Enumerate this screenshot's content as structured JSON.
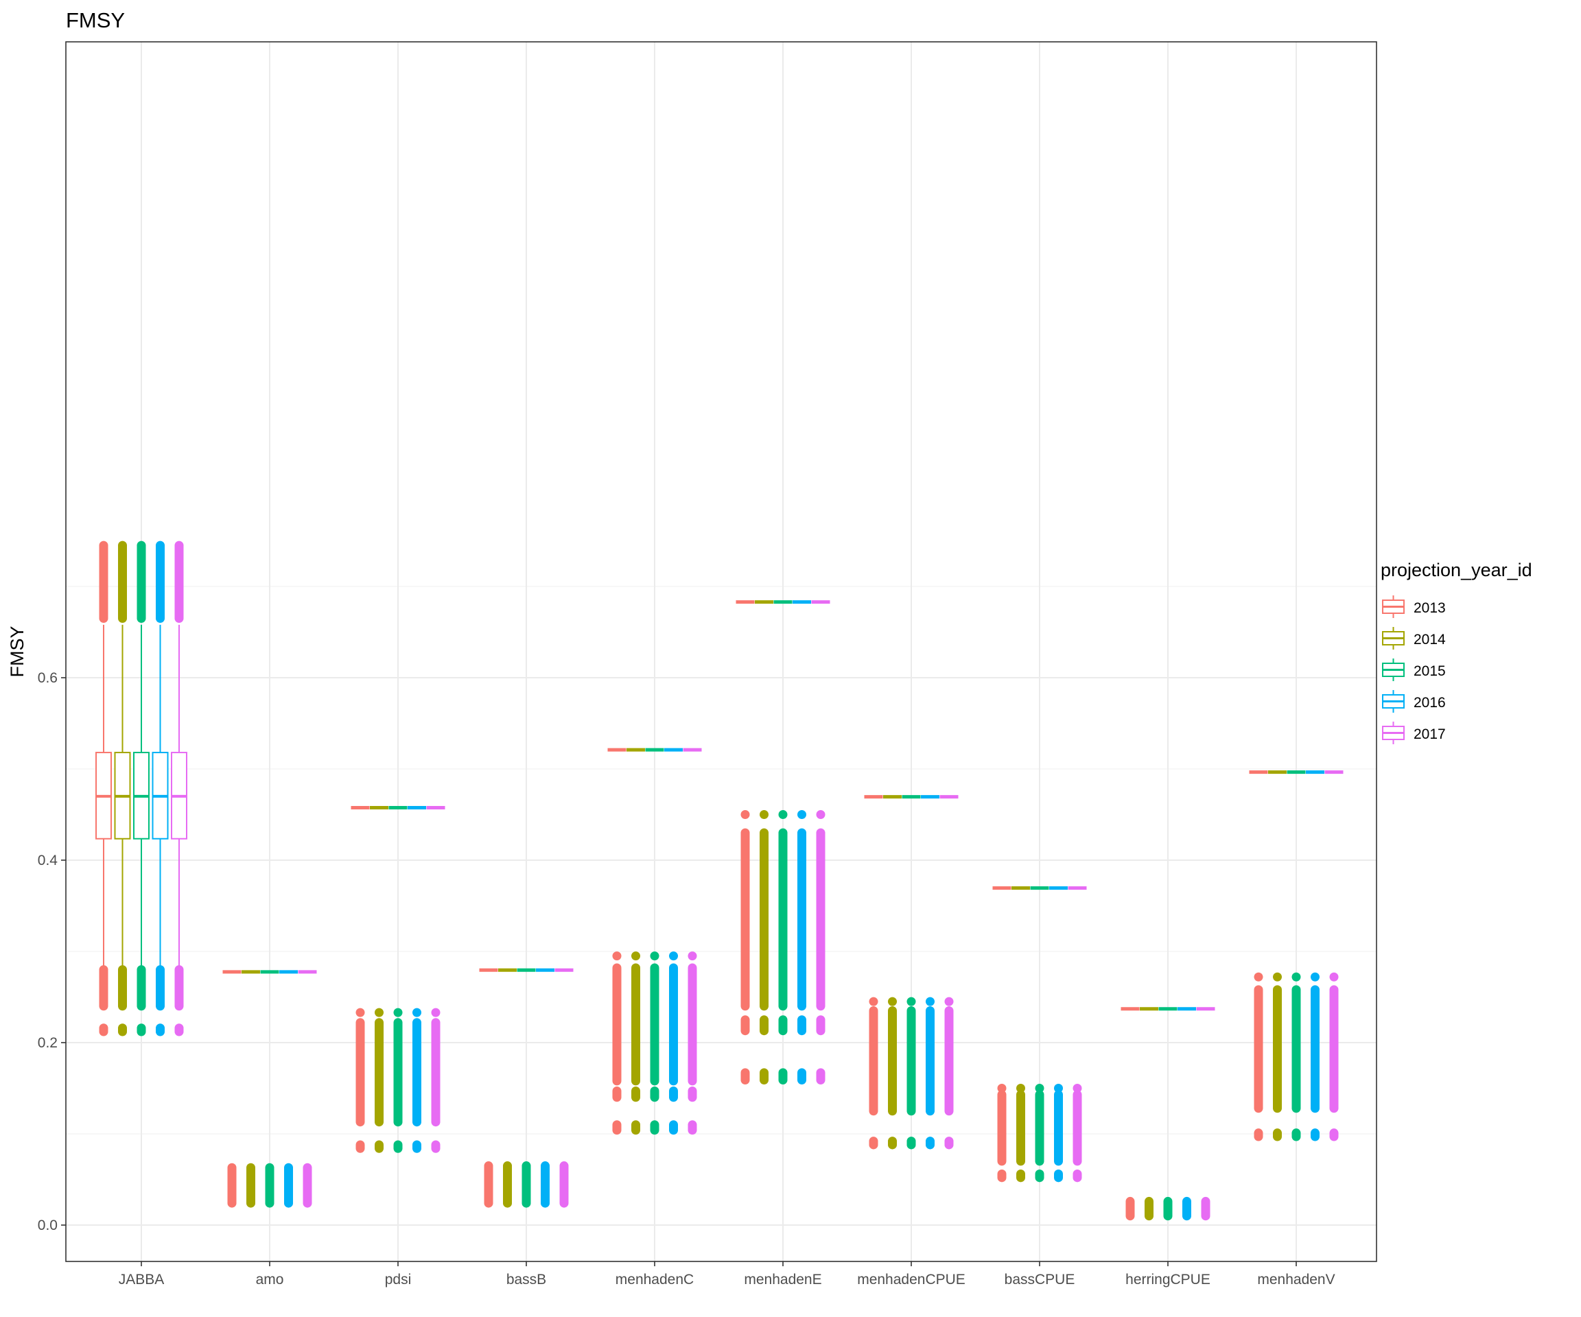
{
  "chart_data": {
    "type": "boxplot",
    "title": "FMSY",
    "xlabel": "",
    "ylabel": "FMSY",
    "ylim": [
      -0.02,
      0.78
    ],
    "yticks": [
      0.0,
      0.2,
      0.4,
      0.6
    ],
    "ytick_labels": [
      "0.0",
      "0.2",
      "0.4",
      "0.6"
    ],
    "grid": true,
    "legend": {
      "title": "projection_year_id",
      "placement": "right",
      "entries": [
        "2013",
        "2014",
        "2015",
        "2016",
        "2017"
      ]
    },
    "colors": [
      "#F8766D",
      "#A3A500",
      "#00BF7D",
      "#00B0F6",
      "#E76BF3"
    ],
    "categories": [
      "JABBA",
      "amo",
      "pdsi",
      "bassB",
      "menhadenC",
      "menhadenE",
      "menhadenCPUE",
      "bassCPUE",
      "herringCPUE",
      "menhadenV"
    ],
    "series": [
      {
        "category": "JABBA",
        "box": {
          "q1": 0.4235,
          "median": 0.47,
          "q3": 0.518,
          "whisker_low": 0.283,
          "whisker_high": 0.658
        },
        "outliers_high": {
          "from": 0.665,
          "to": 0.745
        },
        "outliers_low": [
          {
            "from": 0.24,
            "to": 0.28
          },
          {
            "from": 0.212,
            "to": 0.216
          }
        ]
      },
      {
        "category": "amo",
        "box": {
          "q1": 0.2775,
          "median": 0.2775,
          "q3": 0.2775,
          "whisker_low": 0.2775,
          "whisker_high": 0.2775
        },
        "outliers_low": [
          {
            "from": 0.024,
            "to": 0.063
          }
        ]
      },
      {
        "category": "pdsi",
        "box": {
          "q1": 0.4575,
          "median": 0.4575,
          "q3": 0.4575,
          "whisker_low": 0.4575,
          "whisker_high": 0.4575
        },
        "outliers_low": [
          {
            "from": 0.113,
            "to": 0.222
          },
          {
            "from": 0.084,
            "to": 0.088
          }
        ],
        "outliers_low_extra": [
          0.233
        ]
      },
      {
        "category": "bassB",
        "box": {
          "q1": 0.2795,
          "median": 0.2795,
          "q3": 0.2795,
          "whisker_low": 0.2795,
          "whisker_high": 0.2795
        },
        "outliers_low": [
          {
            "from": 0.024,
            "to": 0.065
          }
        ]
      },
      {
        "category": "menhadenC",
        "box": {
          "q1": 0.521,
          "median": 0.521,
          "q3": 0.521,
          "whisker_low": 0.521,
          "whisker_high": 0.521
        },
        "outliers_low": [
          {
            "from": 0.158,
            "to": 0.282
          },
          {
            "from": 0.14,
            "to": 0.147
          },
          {
            "from": 0.104,
            "to": 0.11
          }
        ],
        "outliers_low_extra": [
          0.295
        ]
      },
      {
        "category": "menhadenE",
        "box": {
          "q1": 0.683,
          "median": 0.683,
          "q3": 0.683,
          "whisker_low": 0.683,
          "whisker_high": 0.683
        },
        "outliers_low": [
          {
            "from": 0.24,
            "to": 0.43
          },
          {
            "from": 0.213,
            "to": 0.225
          },
          {
            "from": 0.159,
            "to": 0.167
          }
        ],
        "outliers_low_extra": [
          0.45
        ]
      },
      {
        "category": "menhadenCPUE",
        "box": {
          "q1": 0.4695,
          "median": 0.4695,
          "q3": 0.4695,
          "whisker_low": 0.4695,
          "whisker_high": 0.4695
        },
        "outliers_low": [
          {
            "from": 0.125,
            "to": 0.235
          },
          {
            "from": 0.088,
            "to": 0.092
          }
        ],
        "outliers_low_extra": [
          0.245
        ]
      },
      {
        "category": "bassCPUE",
        "box": {
          "q1": 0.3695,
          "median": 0.3695,
          "q3": 0.3695,
          "whisker_low": 0.3695,
          "whisker_high": 0.3695
        },
        "outliers_low": [
          {
            "from": 0.07,
            "to": 0.143
          },
          {
            "from": 0.052,
            "to": 0.056
          }
        ],
        "outliers_low_extra": [
          0.15
        ]
      },
      {
        "category": "herringCPUE",
        "box": {
          "q1": 0.237,
          "median": 0.237,
          "q3": 0.237,
          "whisker_low": 0.237,
          "whisker_high": 0.237
        },
        "outliers_low": [
          {
            "from": 0.01,
            "to": 0.026
          }
        ]
      },
      {
        "category": "menhadenV",
        "box": {
          "q1": 0.4965,
          "median": 0.4965,
          "q3": 0.4965,
          "whisker_low": 0.4965,
          "whisker_high": 0.4965
        },
        "outliers_low": [
          {
            "from": 0.128,
            "to": 0.258
          },
          {
            "from": 0.097,
            "to": 0.101
          }
        ],
        "outliers_low_extra": [
          0.272
        ]
      }
    ]
  }
}
